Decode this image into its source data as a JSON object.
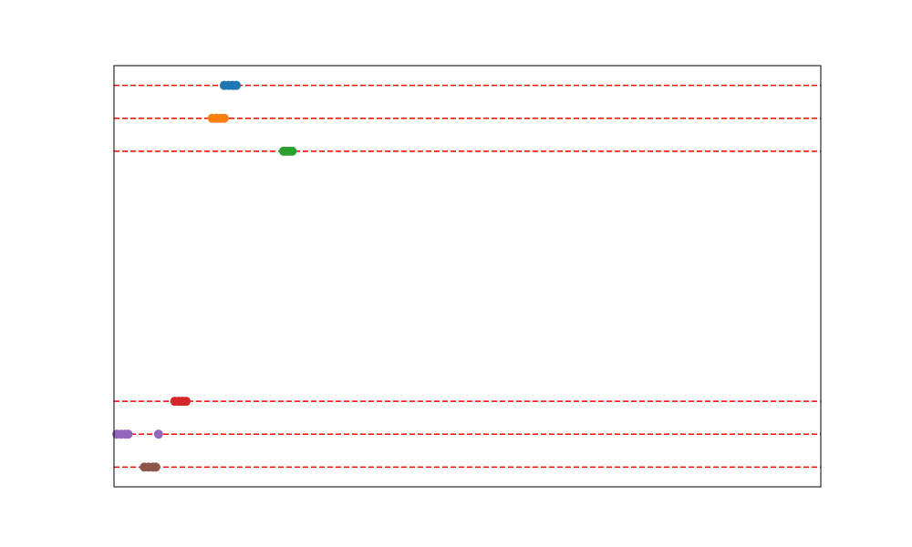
{
  "chart_data": {
    "type": "scatter",
    "title": "",
    "xlabel": "",
    "ylabel": "",
    "xlim": [
      0,
      100
    ],
    "ylim": [
      0,
      12.8
    ],
    "grid": false,
    "axes_ticks_visible": false,
    "reference_line_style": "dashed",
    "reference_line_color": "#ff0000",
    "series": [
      {
        "color": "#1f77b4",
        "level": 12.2,
        "points": [
          {
            "x": 15.6,
            "y": 12.2
          },
          {
            "x": 16.2,
            "y": 12.2
          },
          {
            "x": 16.8,
            "y": 12.2
          },
          {
            "x": 17.3,
            "y": 12.2
          }
        ]
      },
      {
        "color": "#ff7f0e",
        "level": 11.2,
        "points": [
          {
            "x": 13.9,
            "y": 11.2
          },
          {
            "x": 14.5,
            "y": 11.2
          },
          {
            "x": 15.1,
            "y": 11.2
          },
          {
            "x": 15.6,
            "y": 11.2
          }
        ]
      },
      {
        "color": "#2ca02c",
        "level": 10.2,
        "points": [
          {
            "x": 24.0,
            "y": 10.2
          },
          {
            "x": 24.4,
            "y": 10.2
          },
          {
            "x": 24.8,
            "y": 10.2
          },
          {
            "x": 25.2,
            "y": 10.2
          }
        ]
      },
      {
        "color": "#d62728",
        "level": 2.6,
        "points": [
          {
            "x": 8.6,
            "y": 2.6
          },
          {
            "x": 9.2,
            "y": 2.6
          },
          {
            "x": 9.7,
            "y": 2.6
          },
          {
            "x": 10.2,
            "y": 2.6
          }
        ]
      },
      {
        "color": "#9467bd",
        "level": 1.6,
        "points": [
          {
            "x": 0.4,
            "y": 1.6
          },
          {
            "x": 1.0,
            "y": 1.6
          },
          {
            "x": 1.6,
            "y": 1.6
          },
          {
            "x": 2.0,
            "y": 1.6
          },
          {
            "x": 6.3,
            "y": 1.6
          }
        ]
      },
      {
        "color": "#8c564b",
        "level": 0.6,
        "points": [
          {
            "x": 4.3,
            "y": 0.6
          },
          {
            "x": 4.9,
            "y": 0.6
          },
          {
            "x": 5.5,
            "y": 0.6
          },
          {
            "x": 5.9,
            "y": 0.6
          }
        ]
      }
    ]
  }
}
